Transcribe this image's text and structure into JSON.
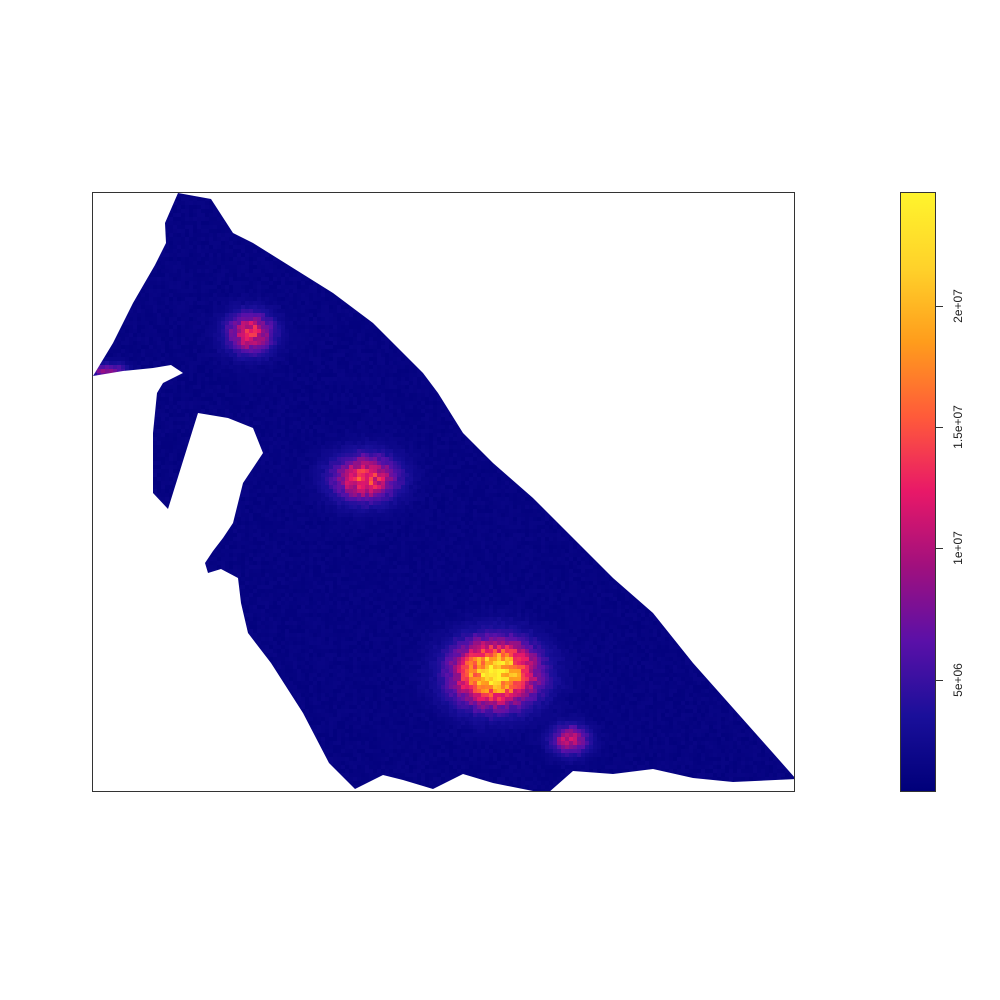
{
  "map": {
    "type": "raster-heatmap",
    "palette": [
      "#00007a",
      "#1a0f9a",
      "#5a10a8",
      "#a0107e",
      "#e81868",
      "#ff5a3a",
      "#ff9c1c",
      "#ffd22a",
      "#fff42c"
    ],
    "value_range": [
      0,
      24500000
    ],
    "background_level": 600000,
    "hotspots": [
      {
        "label": "southeast-core",
        "value": 24000000
      },
      {
        "label": "central",
        "value": 14000000
      },
      {
        "label": "northwest",
        "value": 12500000
      },
      {
        "label": "south",
        "value": 10500000
      },
      {
        "label": "far-west-edge",
        "value": 8500000
      }
    ]
  },
  "legend": {
    "ticks": [
      {
        "value": 5000000,
        "label": "5e+06"
      },
      {
        "value": 10000000,
        "label": "1e+07"
      },
      {
        "value": 15000000,
        "label": "1.5e+07"
      },
      {
        "value": 20000000,
        "label": "2e+07"
      }
    ]
  }
}
